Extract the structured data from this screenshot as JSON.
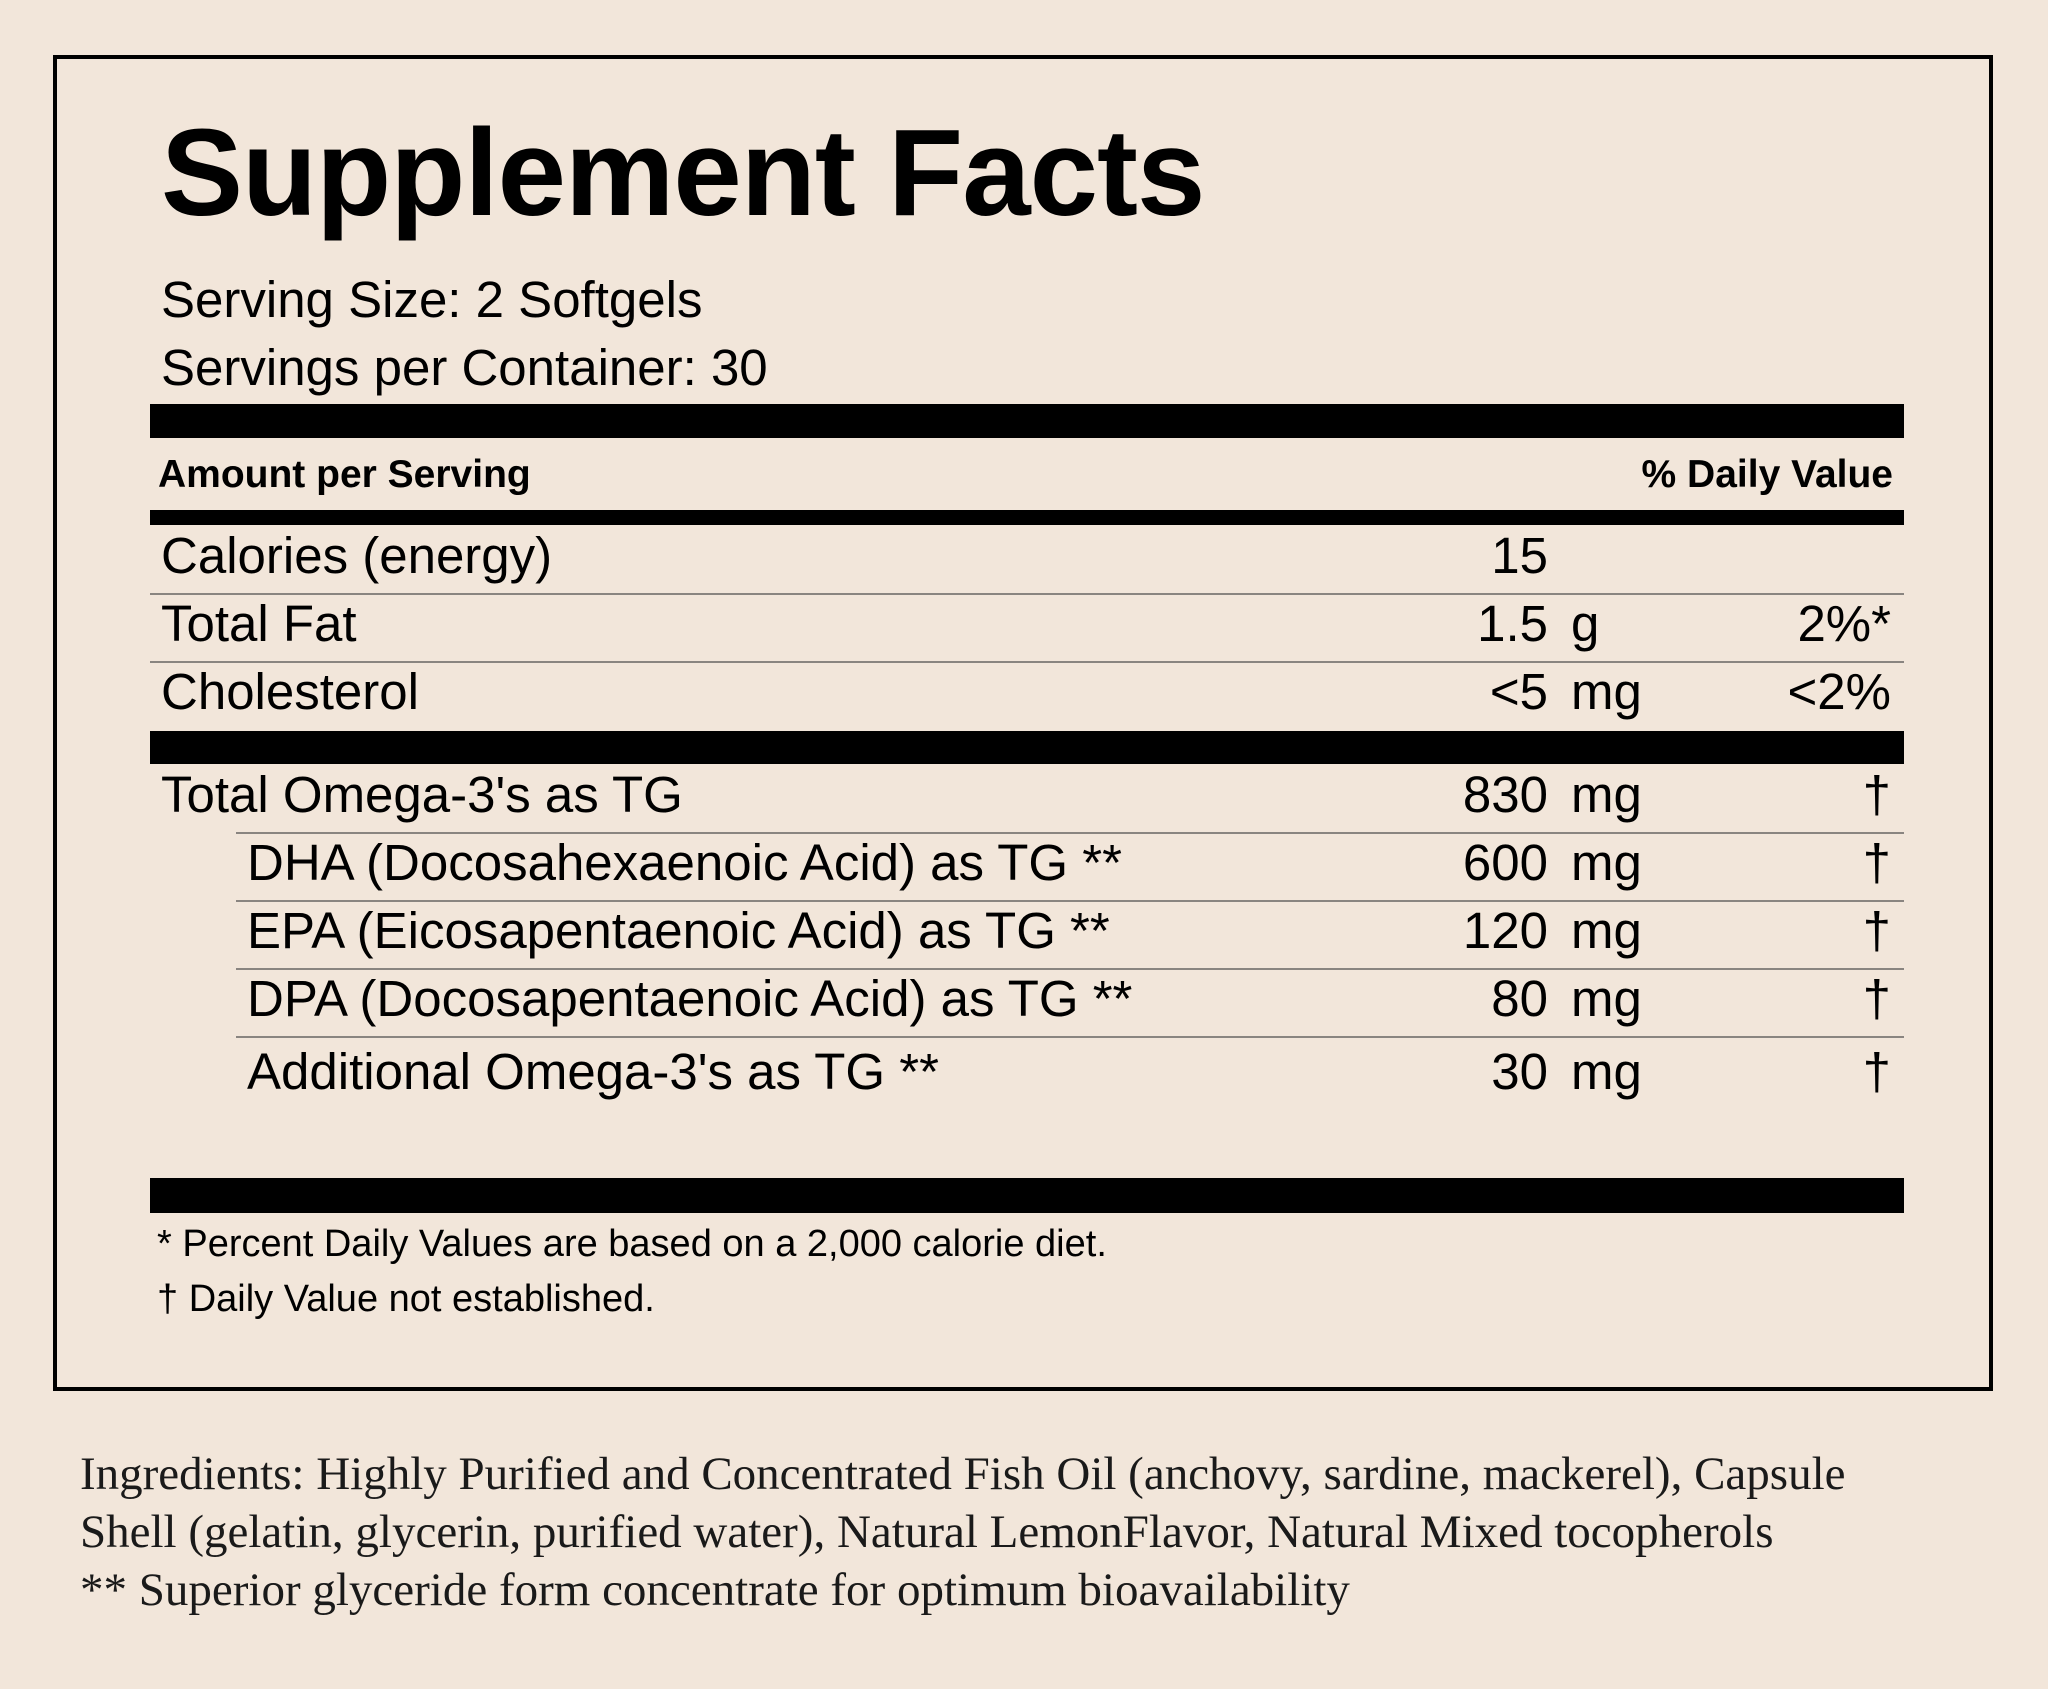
{
  "label": {
    "title": "Supplement Facts",
    "serving_size": "Serving Size: 2 Softgels",
    "servings_per_container": "Servings per Container: 30",
    "header_left": "Amount per Serving",
    "header_right": "% Daily Value",
    "rows": [
      {
        "name": "Calories (energy)",
        "amount": "15",
        "unit": "",
        "dv": ""
      },
      {
        "name": "Total Fat",
        "amount": "1.5",
        "unit": "g",
        "dv": "2%*"
      },
      {
        "name": "Cholesterol",
        "amount": "<5",
        "unit": "mg",
        "dv": "<2%"
      }
    ],
    "omega": [
      {
        "name": "Total Omega-3's as TG",
        "amount": "830",
        "unit": "mg",
        "dv": "†"
      },
      {
        "name": "DHA (Docosahexaenoic Acid) as TG **",
        "amount": "600",
        "unit": "mg",
        "dv": "†"
      },
      {
        "name": "EPA (Eicosapentaenoic Acid) as TG **",
        "amount": "120",
        "unit": "mg",
        "dv": "†"
      },
      {
        "name": "DPA (Docosapentaenoic Acid) as TG **",
        "amount": "80",
        "unit": "mg",
        "dv": "†"
      },
      {
        "name": "Additional Omega-3's as TG **",
        "amount": "30",
        "unit": "mg",
        "dv": "†"
      }
    ],
    "footnote_1": "* Percent Daily Values are based on a 2,000 calorie diet.",
    "footnote_2": "† Daily Value not established."
  },
  "ingredients": {
    "line_1": "Ingredients: Highly Purified and Concentrated Fish Oil (anchovy, sardine, mackerel), Capsule",
    "line_2": "Shell (gelatin, glycerin, purified water), Natural LemonFlavor, Natural Mixed tocopherols",
    "line_3": "** Superior glyceride form concentrate for optimum bioavailability"
  }
}
